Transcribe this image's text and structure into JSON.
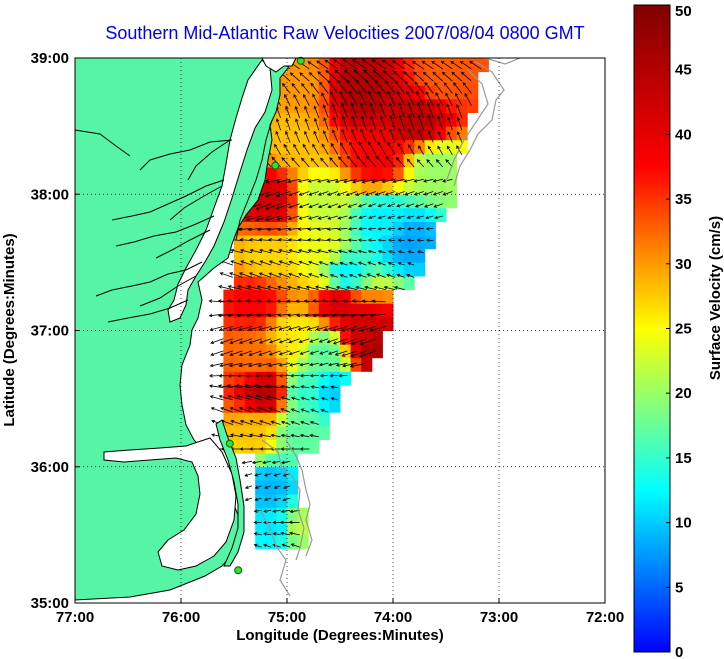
{
  "chart_data": {
    "type": "heatmap",
    "title": "Southern Mid-Atlantic Raw Velocities 2007/08/04 0800 GMT",
    "xlabel": "Longitude (Degrees:Minutes)",
    "ylabel": "Latitude (Degrees:Minutes)",
    "xlim": [
      -77,
      -72
    ],
    "ylim": [
      35,
      39
    ],
    "x_ticks": [
      -77,
      -76,
      -75,
      -74,
      -73,
      -72
    ],
    "x_tick_labels": [
      "77:00",
      "76:00",
      "75:00",
      "74:00",
      "73:00",
      "72:00"
    ],
    "y_ticks": [
      35,
      36,
      37,
      38,
      39
    ],
    "y_tick_labels": [
      "35:00",
      "36:00",
      "37:00",
      "38:00",
      "39:00"
    ],
    "grid": true,
    "colorbar": {
      "label": "Surface Velocity (cm/s)",
      "min": 0,
      "max": 50,
      "ticks": [
        0,
        5,
        10,
        15,
        20,
        25,
        30,
        35,
        40,
        45,
        50
      ],
      "tick_labels": [
        "0",
        "5",
        "10",
        "15",
        "20",
        "25",
        "30",
        "35",
        "40",
        "45",
        "50"
      ],
      "colormap": "jet"
    },
    "land_color": "#55f5a5",
    "arrow_color": "#000000",
    "stations": [
      {
        "lon": -74.87,
        "lat": 38.98
      },
      {
        "lon": -75.11,
        "lat": 38.21
      },
      {
        "lon": -75.54,
        "lat": 36.17
      },
      {
        "lon": -75.46,
        "lat": 35.24
      }
    ],
    "velocity_regions": [
      {
        "lon": -74.9,
        "lat": 38.8,
        "speed": 30
      },
      {
        "lon": -74.3,
        "lat": 38.75,
        "speed": 45
      },
      {
        "lon": -73.75,
        "lat": 38.55,
        "speed": 44
      },
      {
        "lon": -73.55,
        "lat": 38.85,
        "speed": 33
      },
      {
        "lon": -73.6,
        "lat": 38.2,
        "speed": 20
      },
      {
        "lon": -74.15,
        "lat": 38.25,
        "speed": 38
      },
      {
        "lon": -74.95,
        "lat": 38.4,
        "speed": 28
      },
      {
        "lon": -75.15,
        "lat": 37.95,
        "speed": 42
      },
      {
        "lon": -74.7,
        "lat": 37.95,
        "speed": 22
      },
      {
        "lon": -74.1,
        "lat": 37.8,
        "speed": 12
      },
      {
        "lon": -73.85,
        "lat": 37.65,
        "speed": 8
      },
      {
        "lon": -75.2,
        "lat": 37.55,
        "speed": 27
      },
      {
        "lon": -74.7,
        "lat": 37.6,
        "speed": 24
      },
      {
        "lon": -74.45,
        "lat": 37.4,
        "speed": 12
      },
      {
        "lon": -74.5,
        "lat": 37.2,
        "speed": 42
      },
      {
        "lon": -75.3,
        "lat": 37.2,
        "speed": 38
      },
      {
        "lon": -74.3,
        "lat": 37.0,
        "speed": 42
      },
      {
        "lon": -74.15,
        "lat": 36.85,
        "speed": 46
      },
      {
        "lon": -74.95,
        "lat": 36.95,
        "speed": 26
      },
      {
        "lon": -74.65,
        "lat": 36.85,
        "speed": 17
      },
      {
        "lon": -75.3,
        "lat": 36.8,
        "speed": 32
      },
      {
        "lon": -75.2,
        "lat": 36.55,
        "speed": 45
      },
      {
        "lon": -74.85,
        "lat": 36.55,
        "speed": 15
      },
      {
        "lon": -74.55,
        "lat": 36.55,
        "speed": 10
      },
      {
        "lon": -75.3,
        "lat": 36.25,
        "speed": 28
      },
      {
        "lon": -74.9,
        "lat": 36.25,
        "speed": 17
      },
      {
        "lon": -75.15,
        "lat": 35.85,
        "speed": 9
      },
      {
        "lon": -75.1,
        "lat": 35.55,
        "speed": 11
      },
      {
        "lon": -74.9,
        "lat": 35.55,
        "speed": 22
      },
      {
        "lon": -75.0,
        "lat": 35.3,
        "speed": 14
      }
    ]
  }
}
